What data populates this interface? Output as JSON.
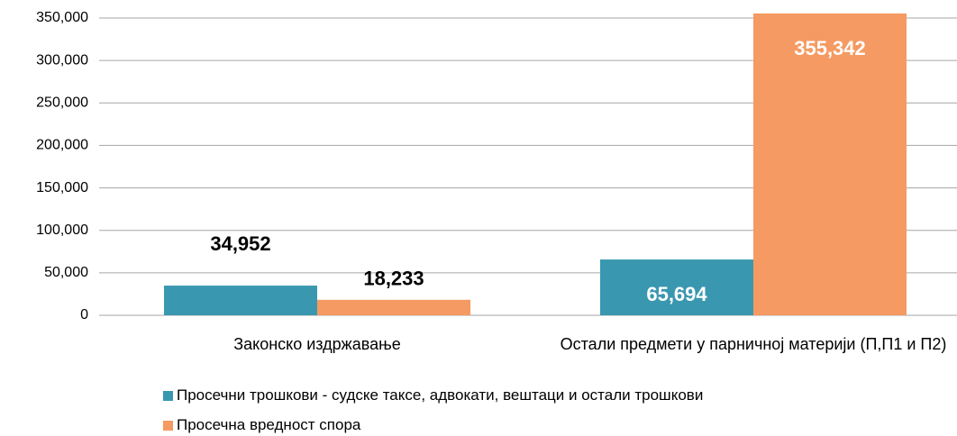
{
  "chart_data": {
    "type": "bar",
    "categories": [
      "Законско издржавање",
      "Остали предмети у парничној материји (П,П1 и П2)"
    ],
    "series": [
      {
        "name": "Просечни трошкови - судске таксе, адвокати, вештаци и остали трошкови",
        "color": "#3a97b0",
        "values": [
          34952,
          65694
        ],
        "value_labels": [
          "34,952",
          "65,694"
        ]
      },
      {
        "name": "Просечна вредност спора",
        "color": "#f59a62",
        "values": [
          18233,
          355342
        ],
        "value_labels": [
          "18,233",
          "355,342"
        ]
      }
    ],
    "ylim": [
      0,
      350000
    ],
    "yticks": [
      0,
      {
        "value": 50000,
        "label": "50,000"
      },
      {
        "value": 100000,
        "label": "100,000"
      },
      {
        "value": 150000,
        "label": "150,000"
      },
      {
        "value": 200000,
        "label": "200,000"
      },
      {
        "value": 250000,
        "label": "250,000"
      },
      {
        "value": 300000,
        "label": "300,000"
      },
      {
        "value": 350000,
        "label": "350,000"
      }
    ],
    "grid": true,
    "legend": "bottom"
  }
}
